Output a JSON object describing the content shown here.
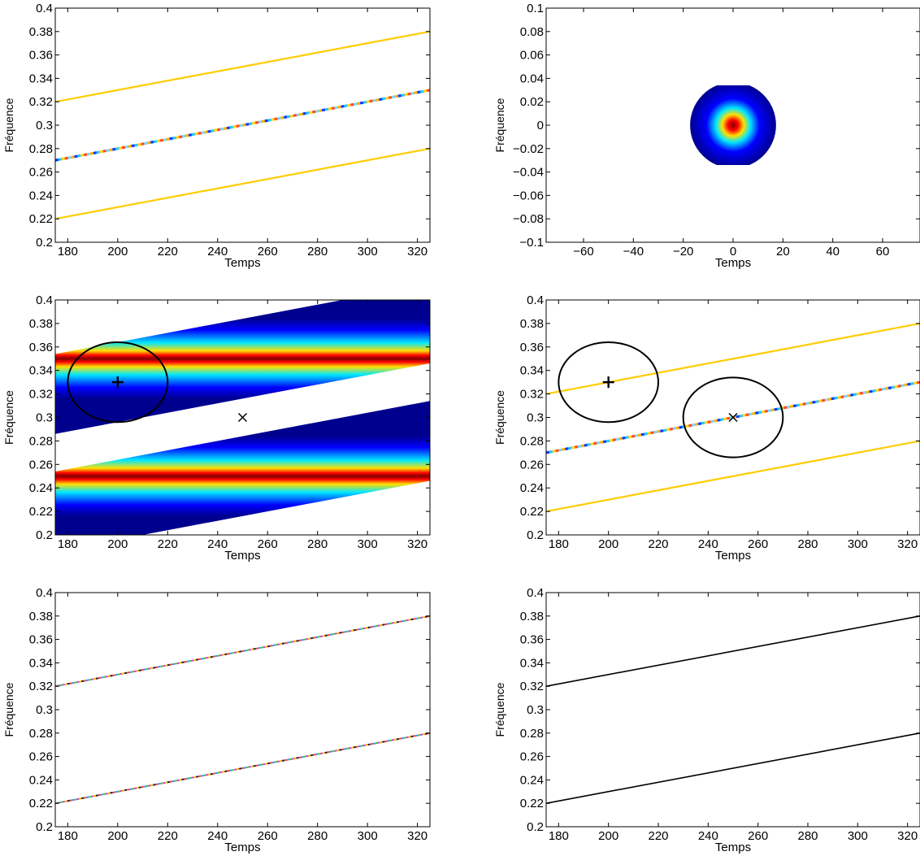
{
  "chart_data": [
    {
      "type": "heatmap",
      "xlabel": "Temps",
      "ylabel": "Fréquence",
      "xlim": [
        175,
        325
      ],
      "ylim": [
        0.2,
        0.4
      ],
      "xticks": [
        180,
        200,
        220,
        240,
        260,
        280,
        300,
        320
      ],
      "yticks": [
        0.2,
        0.22,
        0.24,
        0.26,
        0.28,
        0.3,
        0.32,
        0.34,
        0.36,
        0.38,
        0.4
      ],
      "ytick_labels": [
        "0.2",
        "0.22",
        "0.24",
        "0.26",
        "0.28",
        "0.3",
        "0.32",
        "0.34",
        "0.36",
        "0.38",
        "0.4"
      ],
      "series": [
        {
          "x": [
            175,
            325
          ],
          "y": [
            0.22,
            0.28
          ],
          "style": "yellow-ridge"
        },
        {
          "x": [
            175,
            325
          ],
          "y": [
            0.27,
            0.33
          ],
          "style": "interference"
        },
        {
          "x": [
            175,
            325
          ],
          "y": [
            0.32,
            0.38
          ],
          "style": "yellow-ridge"
        }
      ]
    },
    {
      "type": "heatmap",
      "xlabel": "Temps",
      "ylabel": "Fréquence",
      "xlim": [
        -75,
        75
      ],
      "ylim": [
        -0.1,
        0.1
      ],
      "xticks": [
        -60,
        -40,
        -20,
        0,
        20,
        40,
        60
      ],
      "xtick_labels": [
        "−60",
        "−40",
        "−20",
        "0",
        "20",
        "40",
        "60"
      ],
      "yticks": [
        -0.1,
        -0.08,
        -0.06,
        -0.04,
        -0.02,
        0,
        0.02,
        0.04,
        0.06,
        0.08,
        0.1
      ],
      "ytick_labels": [
        "−0.1",
        "−0.08",
        "−0.06",
        "−0.04",
        "−0.02",
        "0",
        "0.02",
        "0.04",
        "0.06",
        "0.08",
        "0.1"
      ],
      "blob": {
        "center": [
          0,
          0
        ],
        "radius_time": 20,
        "radius_freq": 0.034
      }
    },
    {
      "type": "heatmap",
      "xlabel": "Temps",
      "ylabel": "Fréquence",
      "xlim": [
        175,
        325
      ],
      "ylim": [
        0.2,
        0.4
      ],
      "xticks": [
        180,
        200,
        220,
        240,
        260,
        280,
        300,
        320
      ],
      "yticks": [
        0.2,
        0.22,
        0.24,
        0.26,
        0.28,
        0.3,
        0.32,
        0.34,
        0.36,
        0.38,
        0.4
      ],
      "ytick_labels": [
        "0.2",
        "0.22",
        "0.24",
        "0.26",
        "0.28",
        "0.3",
        "0.32",
        "0.34",
        "0.36",
        "0.38",
        "0.4"
      ],
      "bands": [
        {
          "x": [
            175,
            325
          ],
          "y": [
            0.22,
            0.28
          ],
          "halfwidth": 0.034
        },
        {
          "x": [
            175,
            325
          ],
          "y": [
            0.32,
            0.38
          ],
          "halfwidth": 0.034
        }
      ],
      "markers": [
        {
          "x": 200,
          "y": 0.33,
          "symbol": "+"
        },
        {
          "x": 250,
          "y": 0.3,
          "symbol": "x"
        }
      ],
      "circles": [
        {
          "x": 200,
          "y": 0.33,
          "radius_time": 20,
          "radius_freq": 0.034
        }
      ]
    },
    {
      "type": "heatmap",
      "xlabel": "Temps",
      "ylabel": "Fréquence",
      "xlim": [
        175,
        325
      ],
      "ylim": [
        0.2,
        0.4
      ],
      "xticks": [
        180,
        200,
        220,
        240,
        260,
        280,
        300,
        320
      ],
      "yticks": [
        0.2,
        0.22,
        0.24,
        0.26,
        0.28,
        0.3,
        0.32,
        0.34,
        0.36,
        0.38,
        0.4
      ],
      "ytick_labels": [
        "0.2",
        "0.22",
        "0.24",
        "0.26",
        "0.28",
        "0.3",
        "0.32",
        "0.34",
        "0.36",
        "0.38",
        "0.4"
      ],
      "series": [
        {
          "x": [
            175,
            325
          ],
          "y": [
            0.22,
            0.28
          ],
          "style": "yellow-ridge"
        },
        {
          "x": [
            175,
            325
          ],
          "y": [
            0.27,
            0.33
          ],
          "style": "interference"
        },
        {
          "x": [
            175,
            325
          ],
          "y": [
            0.32,
            0.38
          ],
          "style": "yellow-ridge"
        }
      ],
      "markers": [
        {
          "x": 200,
          "y": 0.33,
          "symbol": "+"
        },
        {
          "x": 250,
          "y": 0.3,
          "symbol": "x"
        }
      ],
      "circles": [
        {
          "x": 200,
          "y": 0.33,
          "radius_time": 20,
          "radius_freq": 0.034
        },
        {
          "x": 250,
          "y": 0.3,
          "radius_time": 20,
          "radius_freq": 0.034
        }
      ]
    },
    {
      "type": "heatmap",
      "xlabel": "Temps",
      "ylabel": "Fréquence",
      "xlim": [
        175,
        325
      ],
      "ylim": [
        0.2,
        0.4
      ],
      "xticks": [
        180,
        200,
        220,
        240,
        260,
        280,
        300,
        320
      ],
      "yticks": [
        0.2,
        0.22,
        0.24,
        0.26,
        0.28,
        0.3,
        0.32,
        0.34,
        0.36,
        0.38,
        0.4
      ],
      "ytick_labels": [
        "0.2",
        "0.22",
        "0.24",
        "0.26",
        "0.28",
        "0.3",
        "0.32",
        "0.34",
        "0.36",
        "0.38",
        "0.4"
      ],
      "series": [
        {
          "x": [
            175,
            325
          ],
          "y": [
            0.22,
            0.28
          ],
          "style": "thin-multicolor"
        },
        {
          "x": [
            175,
            325
          ],
          "y": [
            0.32,
            0.38
          ],
          "style": "thin-multicolor"
        }
      ]
    },
    {
      "type": "line",
      "xlabel": "Temps",
      "ylabel": "Fréquence",
      "xlim": [
        175,
        325
      ],
      "ylim": [
        0.2,
        0.4
      ],
      "xticks": [
        180,
        200,
        220,
        240,
        260,
        280,
        300,
        320
      ],
      "yticks": [
        0.2,
        0.22,
        0.24,
        0.26,
        0.28,
        0.3,
        0.32,
        0.34,
        0.36,
        0.38,
        0.4
      ],
      "ytick_labels": [
        "0.2",
        "0.22",
        "0.24",
        "0.26",
        "0.28",
        "0.3",
        "0.32",
        "0.34",
        "0.36",
        "0.38",
        "0.4"
      ],
      "series": [
        {
          "x": [
            175,
            325
          ],
          "y": [
            0.22,
            0.28
          ],
          "style": "black-line"
        },
        {
          "x": [
            175,
            325
          ],
          "y": [
            0.32,
            0.38
          ],
          "style": "black-line"
        }
      ]
    }
  ],
  "colors": {
    "jet_dark_red": "#800000",
    "jet_red": "#ff0000",
    "jet_yellow": "#ffe000",
    "jet_cyan": "#00e8ff",
    "jet_blue": "#0000ff",
    "jet_dark_blue": "#00008f",
    "ridge_yellow": "#ffcc00",
    "axis": "#000000"
  }
}
